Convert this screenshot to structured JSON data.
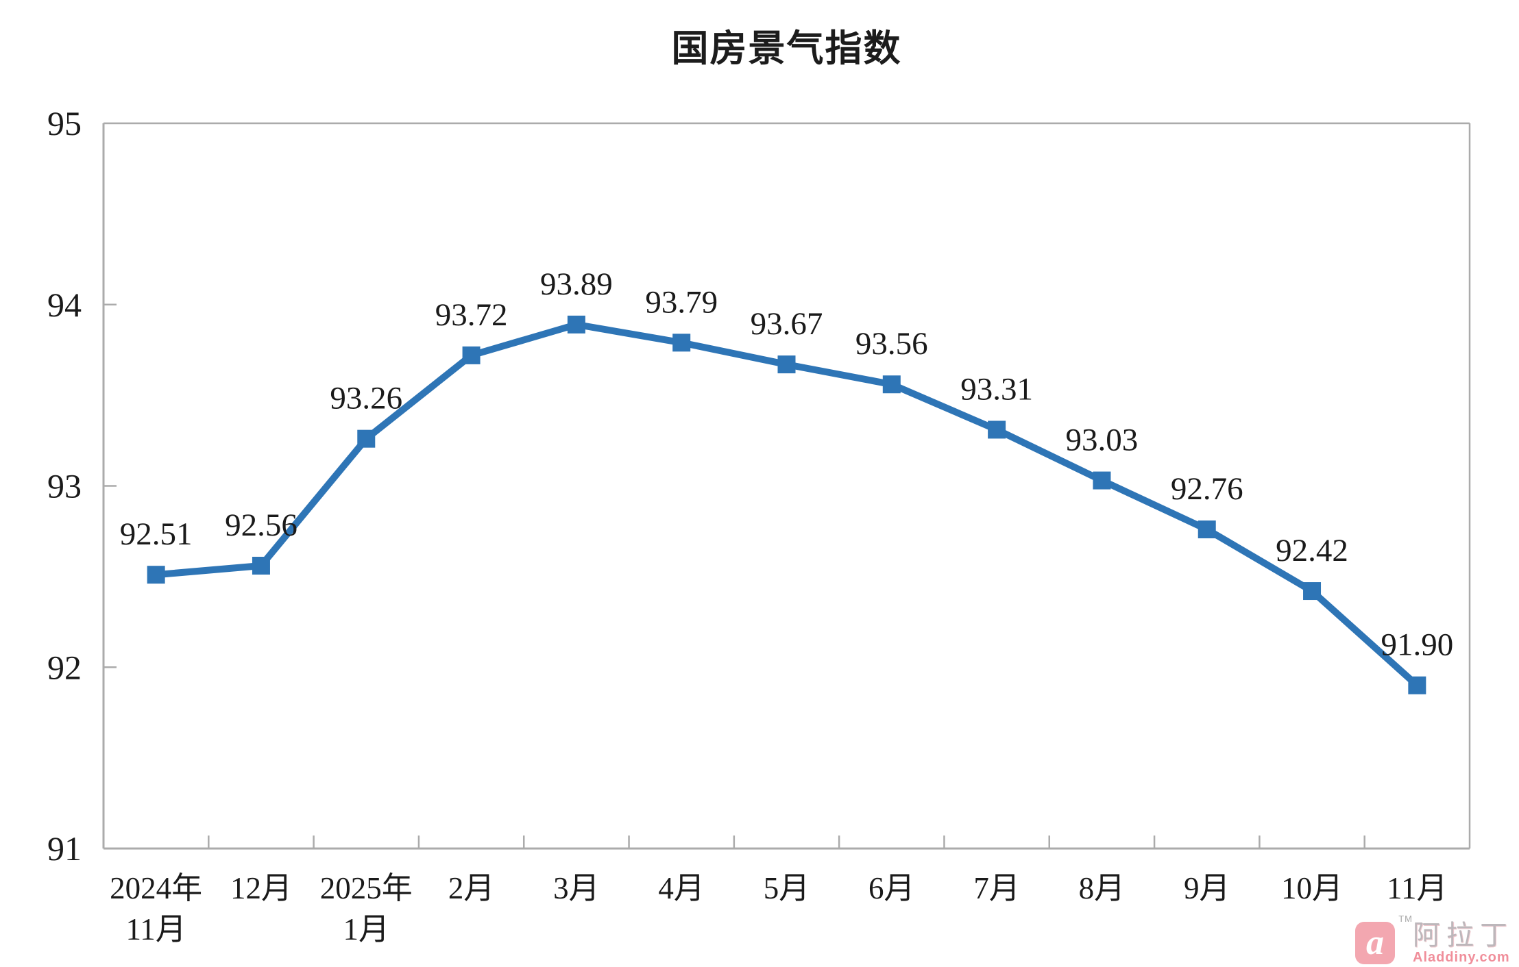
{
  "title": "国房景气指数",
  "chart_data": {
    "type": "line",
    "title": "国房景气指数",
    "categories": [
      [
        "2024年",
        "11月"
      ],
      [
        "12月"
      ],
      [
        "2025年",
        "1月"
      ],
      [
        "2月"
      ],
      [
        "3月"
      ],
      [
        "4月"
      ],
      [
        "5月"
      ],
      [
        "6月"
      ],
      [
        "7月"
      ],
      [
        "8月"
      ],
      [
        "9月"
      ],
      [
        "10月"
      ],
      [
        "11月"
      ]
    ],
    "values": [
      92.51,
      92.56,
      93.26,
      93.72,
      93.89,
      93.79,
      93.67,
      93.56,
      93.31,
      93.03,
      92.76,
      92.42,
      91.9
    ],
    "data_labels": [
      "92.51",
      "92.56",
      "93.26",
      "93.72",
      "93.89",
      "93.79",
      "93.67",
      "93.56",
      "93.31",
      "93.03",
      "92.76",
      "92.42",
      "91.90"
    ],
    "y_ticks": [
      91,
      92,
      93,
      94,
      95
    ],
    "ylim": [
      91,
      95
    ],
    "xlabel": "",
    "ylabel": "",
    "grid": false,
    "legend": false,
    "marker": "square",
    "line_color": "#2E75B6",
    "axis_color": "#ABABAB",
    "text_color": "#1a1a1a"
  },
  "watermark": {
    "logo_letter": "a",
    "tm": "TM",
    "brand_cn": "阿拉丁",
    "brand_url": "Aladdiny.com"
  }
}
